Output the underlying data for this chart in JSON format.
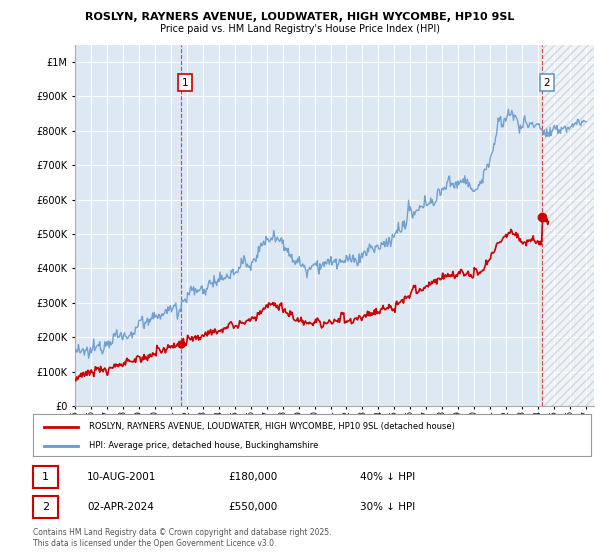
{
  "title_line1": "ROSLYN, RAYNERS AVENUE, LOUDWATER, HIGH WYCOMBE, HP10 9SL",
  "title_line2": "Price paid vs. HM Land Registry's House Price Index (HPI)",
  "xlim_start": 1995.0,
  "xlim_end": 2027.5,
  "ylim_min": 0,
  "ylim_max": 1050000,
  "yticks": [
    0,
    100000,
    200000,
    300000,
    400000,
    500000,
    600000,
    700000,
    800000,
    900000,
    1000000
  ],
  "ytick_labels": [
    "£0",
    "£100K",
    "£200K",
    "£300K",
    "£400K",
    "£500K",
    "£600K",
    "£700K",
    "£800K",
    "£900K",
    "£1M"
  ],
  "xticks": [
    1995,
    1996,
    1997,
    1998,
    1999,
    2000,
    2001,
    2002,
    2003,
    2004,
    2005,
    2006,
    2007,
    2008,
    2009,
    2010,
    2011,
    2012,
    2013,
    2014,
    2015,
    2016,
    2017,
    2018,
    2019,
    2020,
    2021,
    2022,
    2023,
    2024,
    2025,
    2026,
    2027
  ],
  "background_color": "#ffffff",
  "plot_bg_color": "#dde8f5",
  "grid_color": "#ffffff",
  "hpi_color": "#6699cc",
  "price_color": "#cc0000",
  "marker1_date": 2001.61,
  "marker1_price": 180000,
  "marker2_date": 2024.25,
  "marker2_price": 550000,
  "legend_line1": "ROSLYN, RAYNERS AVENUE, LOUDWATER, HIGH WYCOMBE, HP10 9SL (detached house)",
  "legend_line2": "HPI: Average price, detached house, Buckinghamshire",
  "annotation1": "1",
  "annotation2": "2",
  "note1_date": "10-AUG-2001",
  "note1_price": "£180,000",
  "note1_hpi": "40% ↓ HPI",
  "note2_date": "02-APR-2024",
  "note2_price": "£550,000",
  "note2_hpi": "30% ↓ HPI",
  "footer": "Contains HM Land Registry data © Crown copyright and database right 2025.\nThis data is licensed under the Open Government Licence v3.0."
}
